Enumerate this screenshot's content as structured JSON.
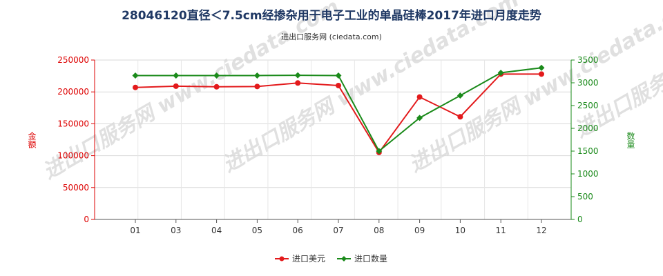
{
  "chart_data": {
    "type": "line",
    "title": "28046120直径＜7.5cm经掺杂用于电子工业的单晶硅棒2017年进口月度走势",
    "subtitle": "进出口服务网 (ciedata.com)",
    "categories": [
      "01",
      "03",
      "04",
      "05",
      "06",
      "07",
      "08",
      "09",
      "10",
      "11",
      "12"
    ],
    "y_left": {
      "label": "金额",
      "range": [
        0,
        250000
      ],
      "ticks": [
        "0",
        "50000",
        "100000",
        "150000",
        "200000",
        "250000"
      ],
      "color": "#dd0000"
    },
    "y_right": {
      "label": "数量",
      "range": [
        0,
        3500
      ],
      "ticks": [
        "0",
        "500",
        "1000",
        "1500",
        "2000",
        "2500",
        "3000",
        "3500"
      ],
      "color": "#1a8a1a"
    },
    "series": [
      {
        "name": "进口美元",
        "axis": "left",
        "color": "#e31a1c",
        "values": [
          207000,
          209000,
          208000,
          208500,
          214000,
          210000,
          105000,
          192000,
          161000,
          228000,
          228000
        ]
      },
      {
        "name": "进口数量",
        "axis": "right",
        "color": "#1a8a1a",
        "values": [
          3160,
          3160,
          3160,
          3160,
          3165,
          3160,
          1500,
          2230,
          2720,
          3220,
          3330
        ]
      }
    ],
    "grid": true,
    "legend": "bottom-center",
    "watermark": "进出口服务网 www.ciedata.com"
  }
}
